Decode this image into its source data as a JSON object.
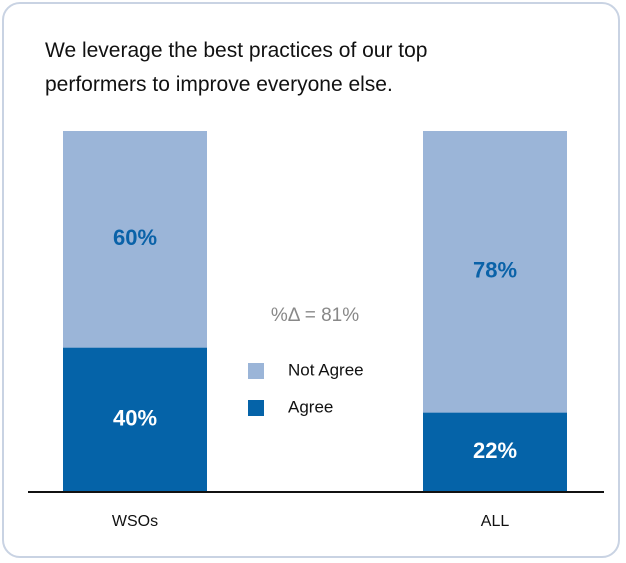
{
  "chart_data": {
    "type": "stacked-bar",
    "title": "We leverage the best practices of our top performers to improve everyone else.",
    "categories": [
      "WSOs",
      "ALL"
    ],
    "series": [
      {
        "name": "Agree",
        "color": "#0563a8",
        "values": [
          40,
          22
        ],
        "value_labels": [
          "40%",
          "22%"
        ]
      },
      {
        "name": "Not Agree",
        "color": "#9bb5d8",
        "values": [
          60,
          78
        ],
        "value_labels": [
          "60%",
          "78%"
        ]
      }
    ],
    "ylim": [
      0,
      100
    ],
    "annotation": "%Δ = 81%"
  }
}
